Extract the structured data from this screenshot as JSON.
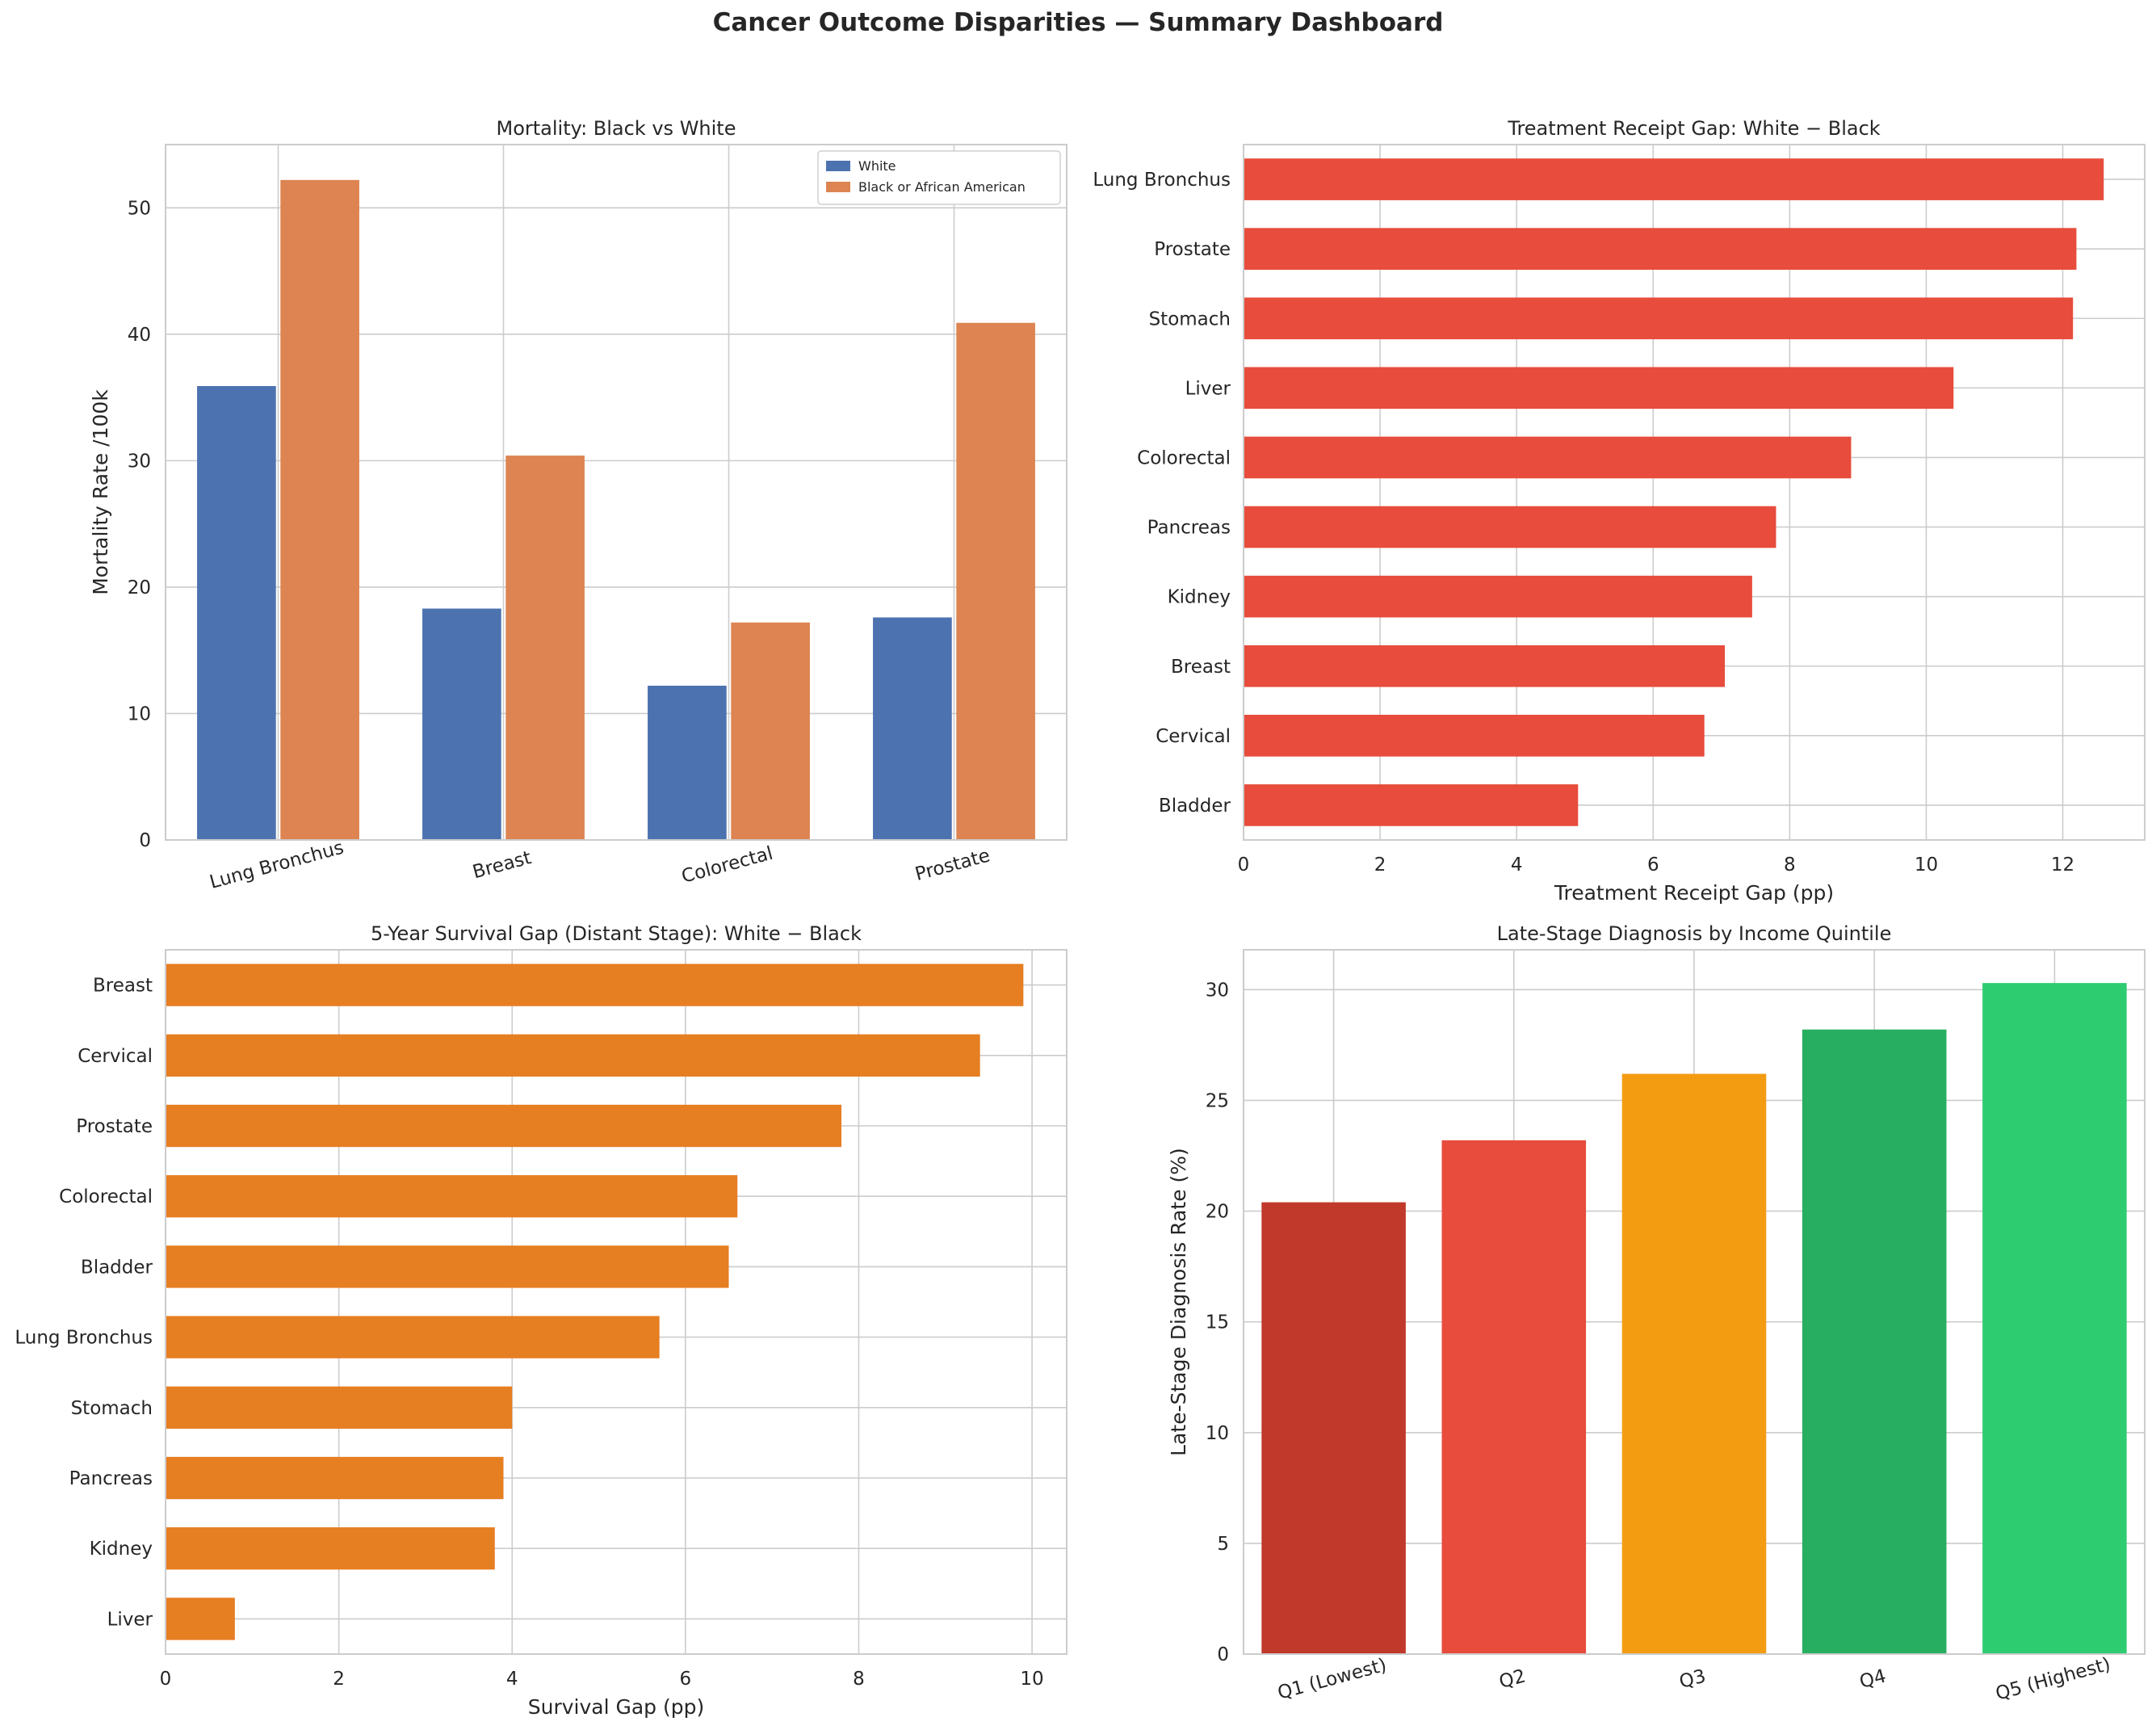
{
  "title": "Cancer Outcome Disparities — Summary Dashboard",
  "colors": {
    "grid": "#cccccc",
    "axis": "#cccccc",
    "text": "#262626",
    "white_series": "#4c72b0",
    "black_series": "#dd8452",
    "treatment_bar": "#e74c3c",
    "survival_bar": "#e67e22"
  },
  "chart_data": [
    {
      "id": "mortality",
      "type": "bar",
      "title": "Mortality: Black vs White",
      "xlabel": "",
      "ylabel": "Mortality Rate /100k",
      "categories": [
        "Lung Bronchus",
        "Breast",
        "Colorectal",
        "Prostate"
      ],
      "series": [
        {
          "name": "White",
          "color": "#4c72b0",
          "values": [
            35.9,
            18.3,
            12.2,
            17.6
          ]
        },
        {
          "name": "Black or African American",
          "color": "#dd8452",
          "values": [
            52.2,
            30.4,
            17.2,
            40.9
          ]
        }
      ],
      "ylim": [
        0,
        55
      ],
      "yticks": [
        0,
        10,
        20,
        30,
        40,
        50
      ],
      "legend": "top-right",
      "grid": true
    },
    {
      "id": "treatment",
      "type": "bar",
      "orientation": "horizontal",
      "title": "Treatment Receipt Gap: White − Black",
      "xlabel": "Treatment Receipt Gap (pp)",
      "ylabel": "",
      "categories": [
        "Lung Bronchus",
        "Prostate",
        "Stomach",
        "Liver",
        "Colorectal",
        "Pancreas",
        "Kidney",
        "Breast",
        "Cervical",
        "Bladder"
      ],
      "values": [
        12.6,
        12.2,
        12.15,
        10.4,
        8.9,
        7.8,
        7.45,
        7.05,
        6.75,
        4.9
      ],
      "xlim": [
        0,
        13.2
      ],
      "xticks": [
        0,
        2,
        4,
        6,
        8,
        10,
        12
      ],
      "grid": true
    },
    {
      "id": "survival",
      "type": "bar",
      "orientation": "horizontal",
      "title": "5-Year Survival Gap (Distant Stage): White − Black",
      "xlabel": "Survival Gap (pp)",
      "ylabel": "",
      "categories": [
        "Breast",
        "Cervical",
        "Prostate",
        "Colorectal",
        "Bladder",
        "Lung Bronchus",
        "Stomach",
        "Pancreas",
        "Kidney",
        "Liver"
      ],
      "values": [
        9.9,
        9.4,
        7.8,
        6.6,
        6.5,
        5.7,
        4.0,
        3.9,
        3.8,
        0.8
      ],
      "xlim": [
        0,
        10.4
      ],
      "xticks": [
        0,
        2,
        4,
        6,
        8,
        10
      ],
      "grid": true
    },
    {
      "id": "income",
      "type": "bar",
      "title": "Late-Stage Diagnosis by Income Quintile",
      "xlabel": "",
      "ylabel": "Late-Stage Diagnosis Rate (%)",
      "categories": [
        "Q1 (Lowest)",
        "Q2",
        "Q3",
        "Q4",
        "Q5 (Highest)"
      ],
      "values": [
        20.4,
        23.2,
        26.2,
        28.2,
        30.3
      ],
      "bar_colors": [
        "#c0392b",
        "#e74c3c",
        "#f39c12",
        "#27ae60",
        "#2ecc71"
      ],
      "ylim": [
        0,
        31.8
      ],
      "yticks": [
        0,
        5,
        10,
        15,
        20,
        25,
        30
      ],
      "grid": true
    }
  ]
}
